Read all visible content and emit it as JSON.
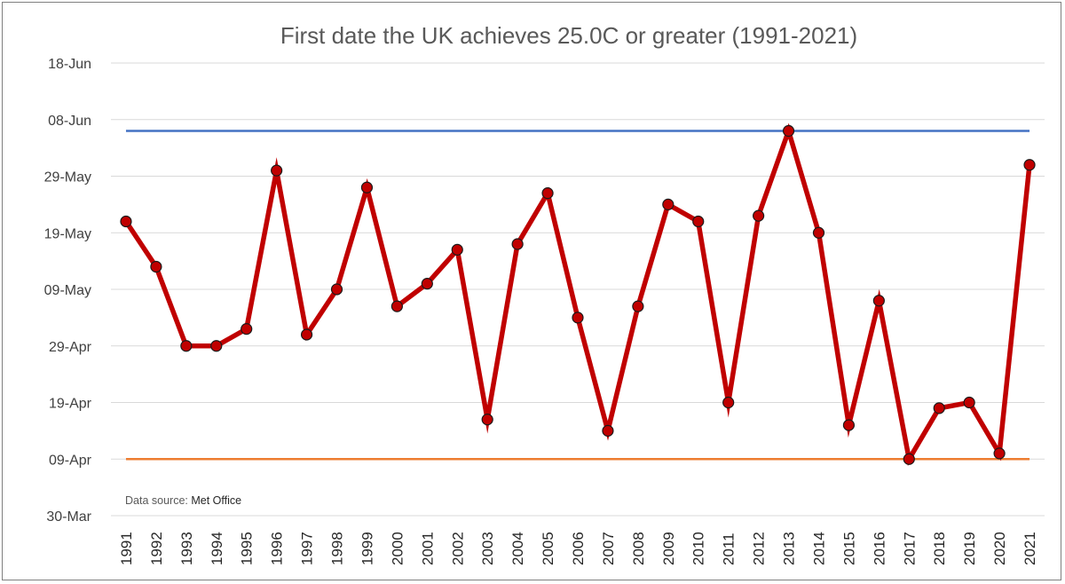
{
  "chart_data": {
    "type": "line",
    "title": "First date the UK achieves 25.0C or greater (1991-2021)",
    "source_label": "Data source:",
    "source_value": "Met Office",
    "xlabel": "",
    "ylabel": "",
    "x": [
      "1991",
      "1992",
      "1993",
      "1994",
      "1995",
      "1996",
      "1997",
      "1998",
      "1999",
      "2000",
      "2001",
      "2002",
      "2003",
      "2004",
      "2005",
      "2006",
      "2007",
      "2008",
      "2009",
      "2010",
      "2011",
      "2012",
      "2013",
      "2014",
      "2015",
      "2016",
      "2017",
      "2018",
      "2019",
      "2020",
      "2021"
    ],
    "y_axis": {
      "type": "date",
      "min": "30-Mar",
      "max": "18-Jun",
      "ticks": [
        "30-Mar",
        "09-Apr",
        "19-Apr",
        "29-Apr",
        "09-May",
        "19-May",
        "29-May",
        "08-Jun",
        "18-Jun"
      ]
    },
    "grid": true,
    "series": [
      {
        "color": "#c00000",
        "marker": "circle",
        "values": [
          "21-May",
          "13-May",
          "29-Apr",
          "29-Apr",
          "02-May",
          "30-May",
          "01-May",
          "09-May",
          "27-May",
          "06-May",
          "10-May",
          "16-May",
          "16-Apr",
          "17-May",
          "26-May",
          "04-May",
          "14-Apr",
          "06-May",
          "24-May",
          "21-May",
          "19-Apr",
          "22-May",
          "06-Jun",
          "19-May",
          "15-Apr",
          "07-May",
          "09-Apr",
          "18-Apr",
          "19-Apr",
          "10-Apr",
          "31-May"
        ]
      }
    ],
    "reference_lines": [
      {
        "value": "06-Jun",
        "color": "#4472c4"
      },
      {
        "value": "09-Apr",
        "color": "#ed7d31"
      }
    ]
  }
}
